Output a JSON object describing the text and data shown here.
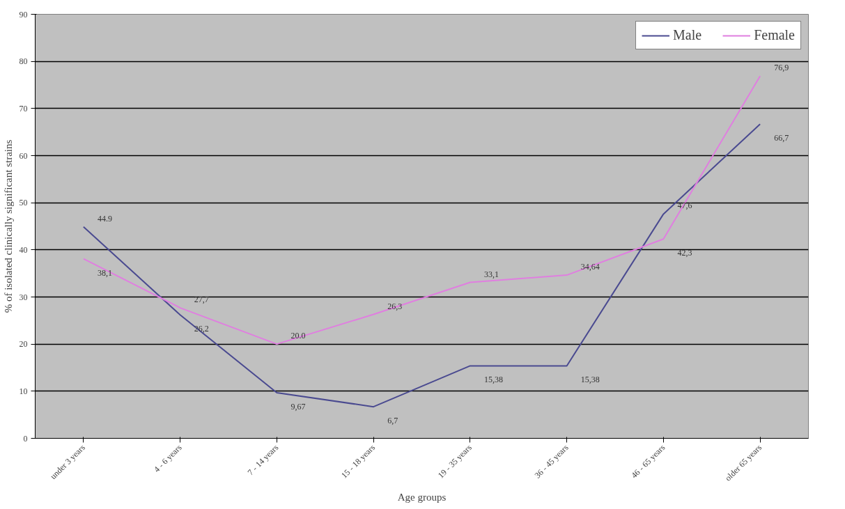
{
  "chart_data": {
    "type": "line",
    "xlabel": "Age groups",
    "ylabel": "% of isolated clinically significant strains",
    "categories": [
      "under 3 years",
      "4 - 6 years",
      "7 - 14 years",
      "15 - 18 years",
      "19 - 35 years",
      "36 - 45 years",
      "46 - 65 years",
      "older 65 years"
    ],
    "series": [
      {
        "name": "Male",
        "color": "#4a4a90",
        "values": [
          44.9,
          26.2,
          9.67,
          6.7,
          15.38,
          15.38,
          47.6,
          66.7
        ],
        "value_labels": [
          "44.9",
          "26,2",
          "9,67",
          "6,7",
          "15,38",
          "15,38",
          "47,6",
          "66,7"
        ]
      },
      {
        "name": "Female",
        "color": "#e07ee0",
        "values": [
          38.1,
          27.7,
          20.0,
          26.3,
          33.1,
          34.64,
          42.3,
          76.9
        ],
        "value_labels": [
          "38,1",
          "27,7",
          "20.0",
          "26,3",
          "33,1",
          "34,64",
          "42,3",
          "76,9"
        ]
      }
    ],
    "ylim": [
      0,
      90
    ],
    "yticks": [
      0,
      10,
      20,
      30,
      40,
      50,
      60,
      70,
      80,
      90
    ],
    "grid": "y",
    "legend": "top right",
    "marker": "none",
    "line_style": "solid"
  }
}
